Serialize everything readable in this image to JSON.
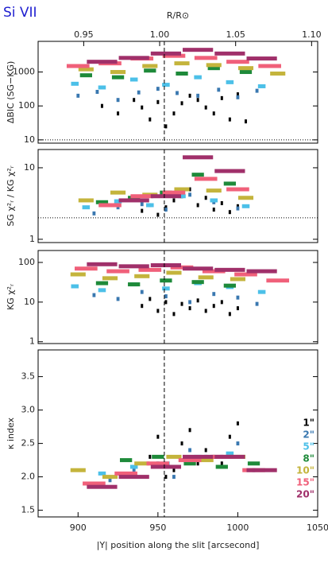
{
  "chart_data": [
    {
      "type": "bar",
      "title": "Si VII",
      "ylabel": "ΔBIC (SG−KG)",
      "log": true,
      "ylim": [
        8,
        8000
      ],
      "yticks": [
        10,
        100,
        1000
      ],
      "x2label": "R/R⊙",
      "x2lim": [
        0.92,
        1.104
      ],
      "x2ticks": [
        0.95,
        {
          "value": 1.0,
          "label": "1.00"
        },
        1.05,
        {
          "value": 1.1,
          "label": "1.10"
        }
      ],
      "xlim": [
        875,
        1050
      ],
      "vline": 954,
      "hline": 10,
      "series": [
        {
          "name": "1\"",
          "color": "#000000",
          "x": [
            915,
            925,
            935,
            940,
            945,
            950,
            955,
            960,
            965,
            970,
            975,
            980,
            985,
            990,
            995,
            1000,
            1005
          ],
          "values": [
            100,
            60,
            150,
            90,
            40,
            130,
            25,
            60,
            120,
            200,
            150,
            90,
            60,
            170,
            40,
            220,
            35
          ]
        },
        {
          "name": "2\"",
          "color": "#3a78b0",
          "x": [
            900,
            912,
            925,
            938,
            950,
            962,
            975,
            988,
            1000,
            1012
          ],
          "values": [
            200,
            260,
            150,
            250,
            320,
            240,
            200,
            300,
            180,
            280
          ]
        },
        {
          "name": "5\"",
          "color": "#4cc0e8",
          "x": [
            898,
            915,
            935,
            955,
            975,
            995,
            1015
          ],
          "values": [
            450,
            350,
            600,
            420,
            700,
            500,
            380
          ]
        },
        {
          "name": "8\"",
          "color": "#1e8a3a",
          "x": [
            905,
            925,
            945,
            965,
            985,
            1005
          ],
          "values": [
            800,
            700,
            1100,
            900,
            1300,
            1000
          ]
        },
        {
          "name": "10\"",
          "color": "#c4b43c",
          "x": [
            905,
            925,
            945,
            965,
            985,
            1005,
            1025
          ],
          "values": [
            1200,
            1000,
            1500,
            1800,
            1600,
            1300,
            900
          ]
        },
        {
          "name": "15\"",
          "color": "#f0607a",
          "x": [
            900,
            920,
            940,
            960,
            980,
            1000,
            1020
          ],
          "values": [
            1500,
            1800,
            2500,
            3000,
            2600,
            2000,
            1500
          ]
        },
        {
          "name": "20\"",
          "color": "#a0306a",
          "x": [
            915,
            935,
            955,
            975,
            995,
            1015
          ],
          "values": [
            2000,
            2600,
            3500,
            4500,
            3500,
            2500
          ]
        }
      ]
    },
    {
      "type": "bar",
      "ylabel": "SG χ²ᵣ / KG χ²ᵣ",
      "log": true,
      "ylim": [
        0.9,
        18
      ],
      "yticks": [
        1,
        10
      ],
      "xlim": [
        875,
        1050
      ],
      "vline": 954,
      "hline": 2,
      "series": [
        {
          "name": "1\"",
          "color": "#000000",
          "x": [
            940,
            945,
            950,
            955,
            960,
            965,
            970,
            975,
            980,
            985,
            990,
            995,
            1000
          ],
          "values": [
            2.5,
            3,
            2.2,
            2.8,
            3.5,
            4,
            5,
            3,
            3.8,
            2.6,
            3.2,
            2.4,
            2.9
          ]
        },
        {
          "name": "2\"",
          "color": "#3a78b0",
          "x": [
            910,
            925,
            940,
            955,
            970,
            985,
            1000
          ],
          "values": [
            2.3,
            2.8,
            3.1,
            2.6,
            4.2,
            3.3,
            2.7
          ]
        },
        {
          "name": "5\"",
          "color": "#4cc0e8",
          "x": [
            905,
            925,
            945,
            965,
            985,
            1005
          ],
          "values": [
            2.8,
            3.4,
            3.0,
            4.0,
            3.5,
            2.9
          ]
        },
        {
          "name": "8\"",
          "color": "#1e8a3a",
          "x": [
            915,
            935,
            955,
            975,
            995
          ],
          "values": [
            3.3,
            3.8,
            4.5,
            8,
            6
          ]
        },
        {
          "name": "10\"",
          "color": "#c4b43c",
          "x": [
            905,
            925,
            945,
            965,
            985,
            1005
          ],
          "values": [
            3.5,
            4.5,
            4.2,
            5,
            4.8,
            3.8
          ]
        },
        {
          "name": "15\"",
          "color": "#f0607a",
          "x": [
            920,
            940,
            960,
            980,
            1000
          ],
          "values": [
            3.0,
            4,
            4.5,
            7,
            5
          ]
        },
        {
          "name": "20\"",
          "color": "#a0306a",
          "x": [
            935,
            955,
            975,
            995
          ],
          "values": [
            3.5,
            4,
            14,
            9
          ]
        }
      ]
    },
    {
      "type": "bar",
      "ylabel": "KG χ²ᵣ",
      "log": true,
      "ylim": [
        0.9,
        200
      ],
      "yticks": [
        1,
        10,
        100
      ],
      "xlim": [
        875,
        1050
      ],
      "vline": 954,
      "series": [
        {
          "name": "1\"",
          "color": "#000000",
          "x": [
            940,
            945,
            950,
            955,
            960,
            965,
            970,
            975,
            980,
            985,
            990,
            995,
            1000
          ],
          "values": [
            8,
            12,
            6,
            10,
            5,
            9,
            7,
            11,
            6,
            8,
            10,
            5,
            7
          ]
        },
        {
          "name": "2\"",
          "color": "#3a78b0",
          "x": [
            910,
            925,
            940,
            955,
            970,
            985,
            1000,
            1012
          ],
          "values": [
            15,
            12,
            18,
            14,
            10,
            16,
            13,
            9
          ]
        },
        {
          "name": "5\"",
          "color": "#4cc0e8",
          "x": [
            898,
            915,
            935,
            955,
            975,
            995,
            1015
          ],
          "values": [
            25,
            20,
            28,
            22,
            30,
            24,
            18
          ]
        },
        {
          "name": "8\"",
          "color": "#1e8a3a",
          "x": [
            915,
            935,
            955,
            975,
            995
          ],
          "values": [
            30,
            28,
            35,
            32,
            26
          ]
        },
        {
          "name": "10\"",
          "color": "#c4b43c",
          "x": [
            900,
            920,
            940,
            960,
            980,
            1000
          ],
          "values": [
            50,
            40,
            45,
            55,
            42,
            38
          ]
        },
        {
          "name": "15\"",
          "color": "#f0607a",
          "x": [
            905,
            925,
            945,
            965,
            985,
            1005,
            1025
          ],
          "values": [
            70,
            60,
            65,
            75,
            60,
            50,
            35
          ]
        },
        {
          "name": "20\"",
          "color": "#a0306a",
          "x": [
            915,
            935,
            955,
            975,
            995,
            1015
          ],
          "values": [
            90,
            80,
            85,
            70,
            65,
            60
          ]
        }
      ]
    },
    {
      "type": "bar",
      "ylabel": "κ index",
      "log": false,
      "ylim": [
        1.4,
        3.9
      ],
      "yticks": [
        1.5,
        {
          "value": 2,
          "label": "2.0"
        },
        2.5,
        {
          "value": 3,
          "label": "3.0"
        },
        3.5
      ],
      "xlabel": "|Y| position along the slit [arcsecond]",
      "xlim": [
        875,
        1050
      ],
      "xticks": [
        900,
        950,
        1000,
        1050
      ],
      "vline": 954,
      "series": [
        {
          "name": "1\"",
          "color": "#000000",
          "x": [
            945,
            950,
            955,
            960,
            965,
            970,
            975,
            980,
            985,
            990,
            995,
            1000
          ],
          "values": [
            2.3,
            2.6,
            2.0,
            2.1,
            2.5,
            2.7,
            2.2,
            2.4,
            2.3,
            2.2,
            2.6,
            2.8
          ]
        },
        {
          "name": "2\"",
          "color": "#3a78b0",
          "x": [
            905,
            920,
            935,
            950,
            960,
            970,
            980,
            990,
            1000,
            1010
          ],
          "values": [
            1.9,
            1.95,
            2.1,
            2.2,
            2.0,
            2.4,
            2.3,
            2.3,
            2.5,
            2.1
          ]
        },
        {
          "name": "5\"",
          "color": "#4cc0e8",
          "x": [
            915,
            935,
            955,
            975,
            995
          ],
          "values": [
            2.05,
            2.15,
            2.2,
            2.3,
            2.35
          ]
        },
        {
          "name": "8\"",
          "color": "#1e8a3a",
          "x": [
            930,
            950,
            970,
            990,
            1010
          ],
          "values": [
            2.25,
            2.3,
            2.2,
            2.15,
            2.2
          ]
        },
        {
          "name": "10\"",
          "color": "#c4b43c",
          "x": [
            900,
            920,
            940,
            960,
            980,
            1000
          ],
          "values": [
            2.1,
            2.0,
            2.2,
            2.3,
            2.25,
            2.3
          ]
        },
        {
          "name": "15\"",
          "color": "#f0607a",
          "x": [
            910,
            930,
            950,
            970,
            990,
            1010
          ],
          "values": [
            1.9,
            2.05,
            2.2,
            2.25,
            2.3,
            2.1
          ]
        },
        {
          "name": "20\"",
          "color": "#a0306a",
          "x": [
            915,
            935,
            955,
            975,
            995,
            1015
          ],
          "values": [
            1.85,
            2.0,
            2.15,
            2.3,
            2.3,
            2.1
          ]
        }
      ]
    }
  ]
}
